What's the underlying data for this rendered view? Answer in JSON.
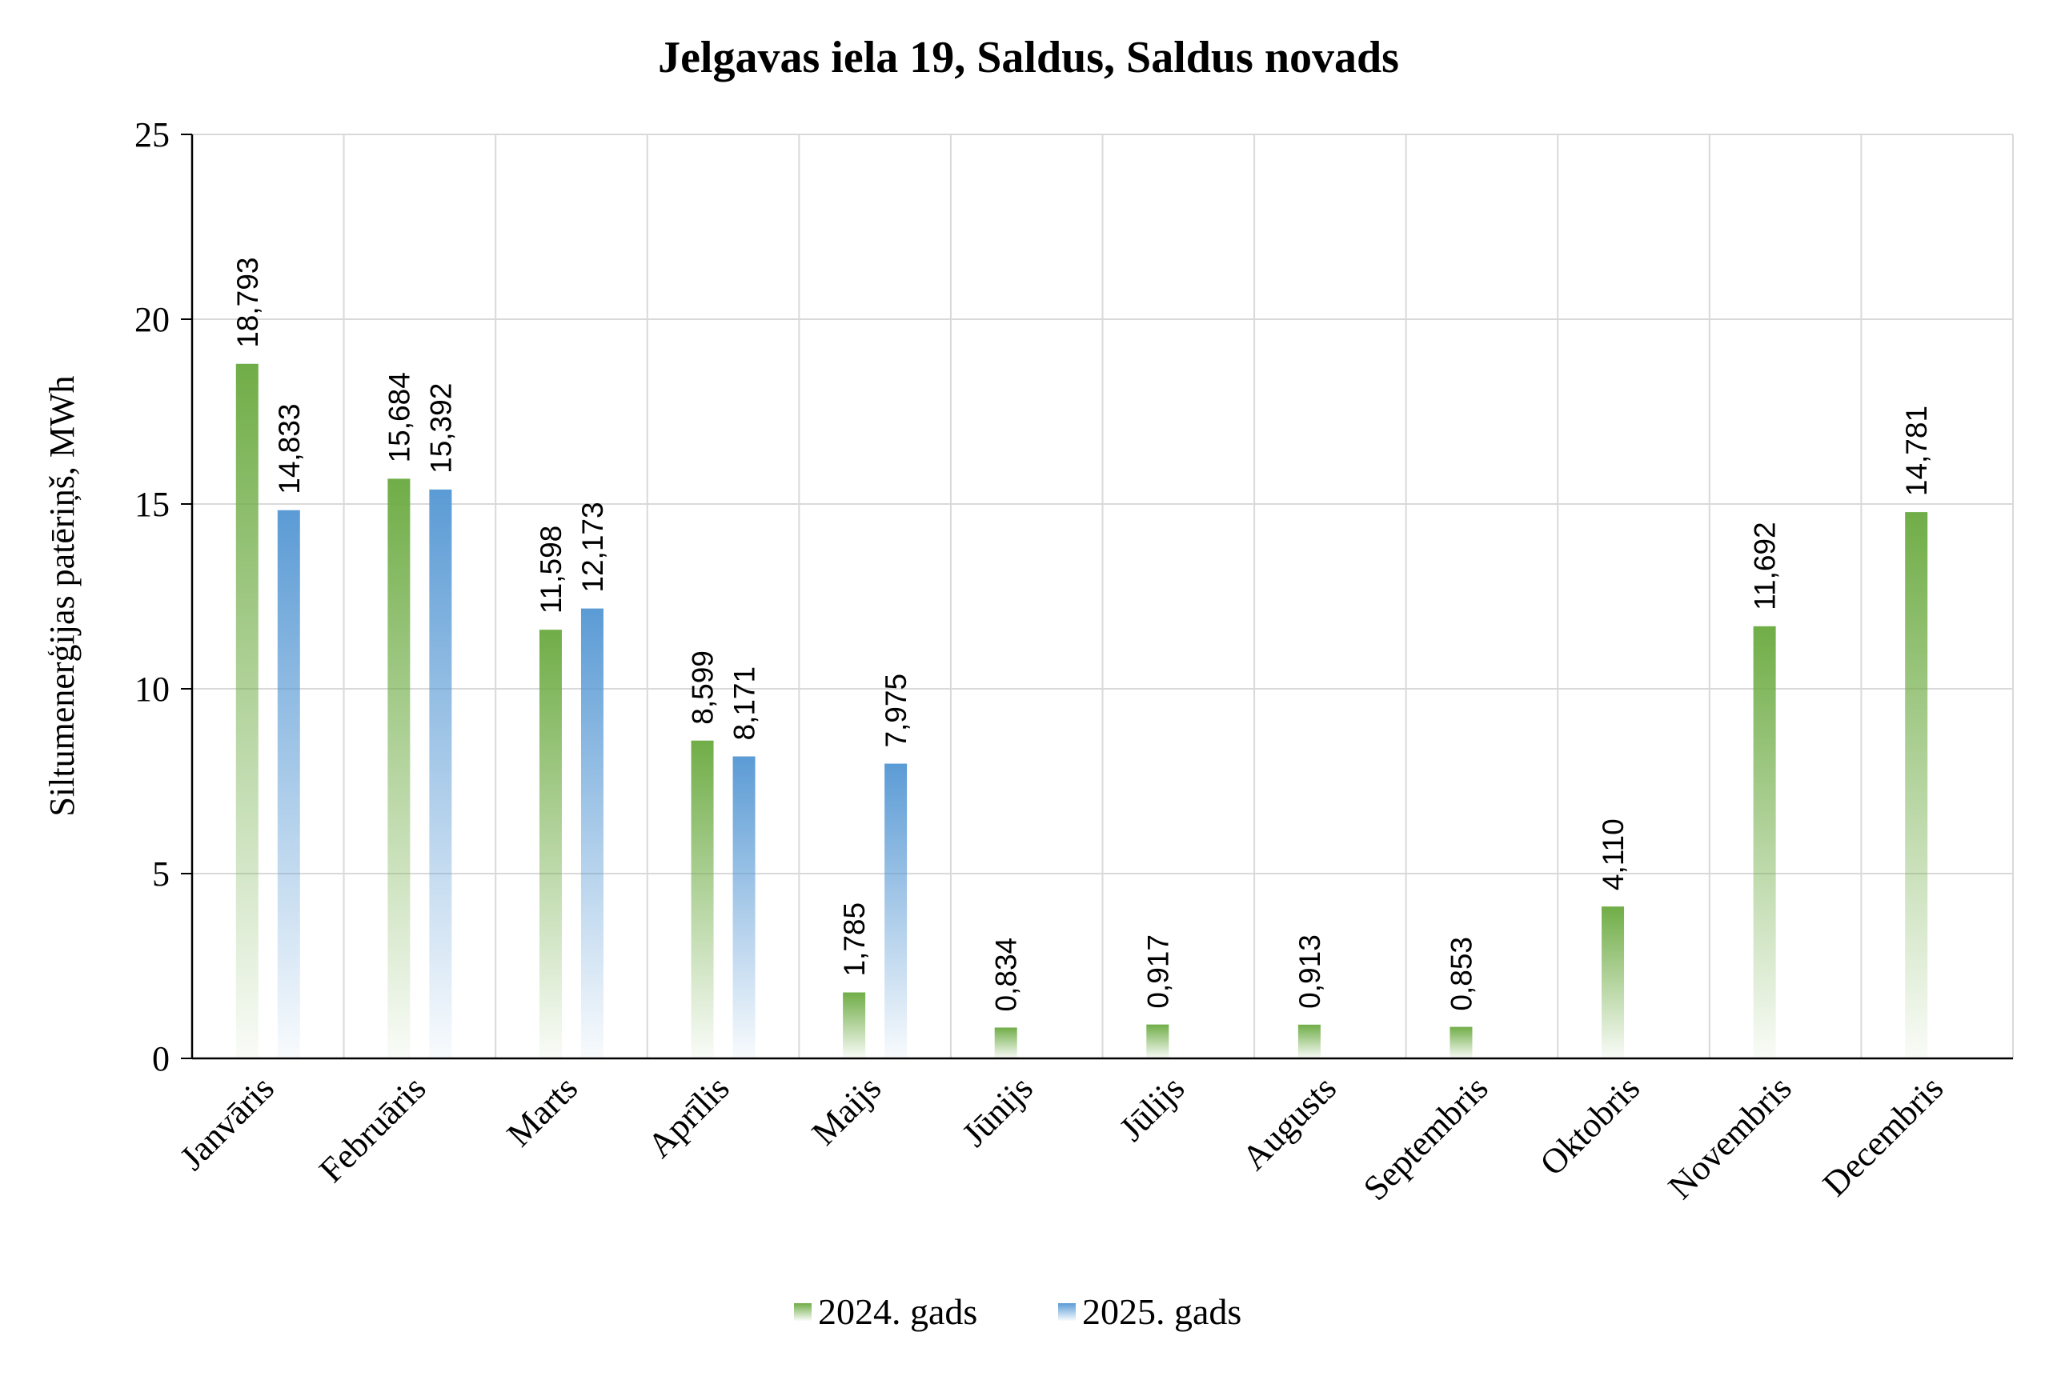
{
  "chart_data": {
    "type": "bar",
    "title": "Jelgavas iela 19, Saldus, Saldus novads",
    "xlabel": "",
    "ylabel": "Siltumenerģijas patēriņš, MWh",
    "ylim": [
      0,
      25
    ],
    "yticks": [
      "0",
      "5",
      "10",
      "15",
      "20",
      "25"
    ],
    "grid": true,
    "legend_position": "bottom",
    "categories": [
      "Janvāris",
      "Februāris",
      "Marts",
      "Aprīlis",
      "Maijs",
      "Jūnijs",
      "Jūlijs",
      "Augusts",
      "Septembris",
      "Oktobris",
      "Novembris",
      "Decembris"
    ],
    "series": [
      {
        "name": "2024. gads",
        "color": "#70ad47",
        "values": [
          18.793,
          15.684,
          11.598,
          8.599,
          1.785,
          0.834,
          0.917,
          0.913,
          0.853,
          4.11,
          11.692,
          14.781
        ],
        "labels": [
          "18,793",
          "15,684",
          "11,598",
          "8,599",
          "1,785",
          "0,834",
          "0,917",
          "0,913",
          "0,853",
          "4,110",
          "11,692",
          "14,781"
        ]
      },
      {
        "name": "2025. gads",
        "color": "#5b9bd5",
        "values": [
          14.833,
          15.392,
          12.173,
          8.171,
          7.975,
          null,
          null,
          null,
          null,
          null,
          null,
          null
        ],
        "labels": [
          "14,833",
          "15,392",
          "12,173",
          "8,171",
          "7,975",
          "",
          "",
          "",
          "",
          "",
          "",
          ""
        ]
      }
    ]
  }
}
